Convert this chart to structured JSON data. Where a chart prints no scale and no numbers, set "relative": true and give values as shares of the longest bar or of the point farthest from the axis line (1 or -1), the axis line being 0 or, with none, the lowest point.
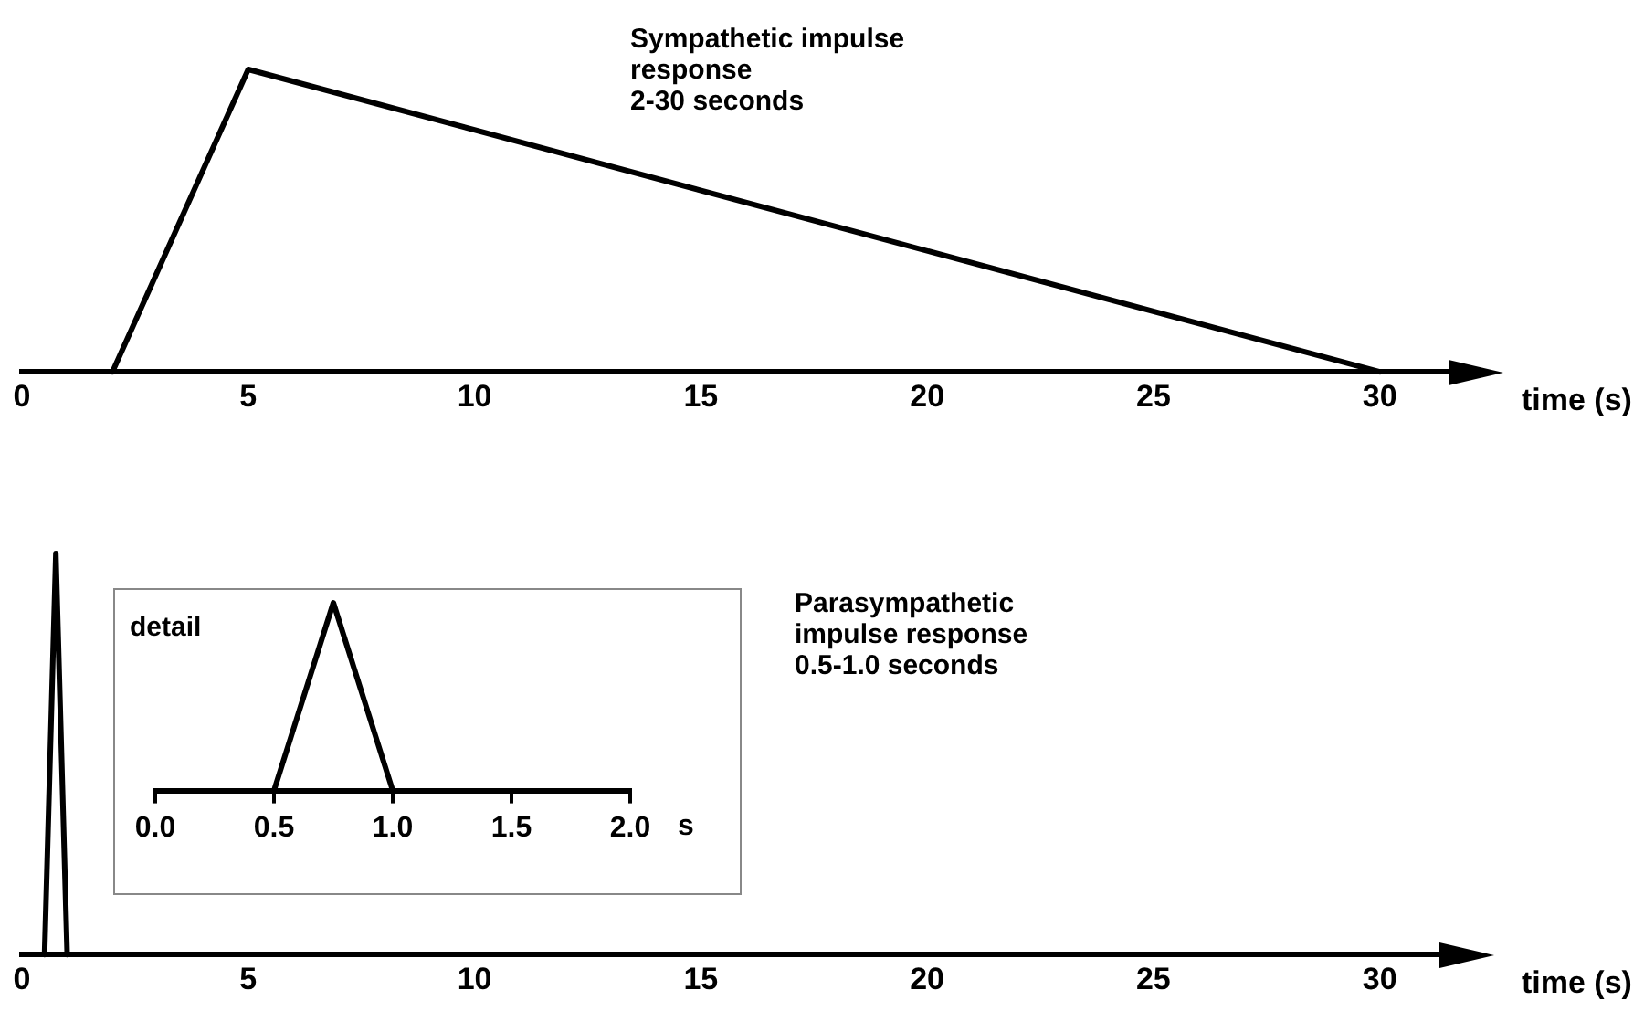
{
  "chart_data": [
    {
      "type": "line",
      "xlabel": "time (s)",
      "annotations": [
        "Sympathetic impulse\nresponse\n2-30 seconds"
      ],
      "relative": true,
      "xlim": [
        0,
        31.6
      ],
      "xticks": [
        0,
        5,
        10,
        15,
        20,
        25,
        30
      ],
      "series": [
        {
          "color": "#000000",
          "x": [
            2,
            5,
            30
          ],
          "values": [
            0,
            1,
            0
          ]
        }
      ]
    },
    {
      "type": "line",
      "xlabel": "time (s)",
      "annotations": [
        "Parasympathetic\nimpulse response\n0.5-1.0 seconds"
      ],
      "relative": true,
      "xlim": [
        0,
        31.4
      ],
      "xticks": [
        0,
        5,
        10,
        15,
        20,
        25,
        30
      ],
      "series": [
        {
          "color": "#000000",
          "x": [
            0.5,
            0.75,
            1.0
          ],
          "values": [
            0,
            1,
            0
          ]
        }
      ]
    },
    {
      "type": "line",
      "title": "detail",
      "xlabel": "s",
      "relative": true,
      "xlim": [
        0,
        2
      ],
      "xticks": [
        {
          "value": 0,
          "label": "0.0"
        },
        {
          "value": 0.5,
          "label": "0.5"
        },
        {
          "value": 1,
          "label": "1.0"
        },
        {
          "value": 1.5,
          "label": "1.5"
        },
        {
          "value": 2,
          "label": "2.0"
        }
      ],
      "series": [
        {
          "color": "#000000",
          "x": [
            0.5,
            0.75,
            1.0
          ],
          "values": [
            0,
            1,
            0
          ]
        }
      ]
    }
  ]
}
